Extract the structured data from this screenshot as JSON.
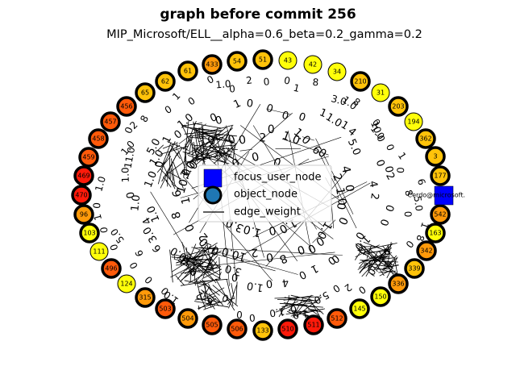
{
  "title": "graph before commit 256",
  "subtitle": "MIP_Microsoft/ELL__alpha=0.6_beta=0.2_gamma=0.2",
  "legend": {
    "focus": "focus_user_node",
    "object": "object_node",
    "edge": "edge_weight"
  },
  "colors": {
    "focus_fill": "#0000ff",
    "object_legend_fill": "#1f77b4",
    "red": "#ff1a0a",
    "orange_red": "#ff5a0a",
    "orange": "#ff9a0a",
    "amber": "#ffc30a",
    "yellow": "#ffff0a"
  },
  "focus_node": {
    "label": "Cerdo@microsoft."
  },
  "nodes": [
    {
      "label": "54",
      "heat": "amber",
      "thick": true
    },
    {
      "label": "51",
      "heat": "amber",
      "thick": true
    },
    {
      "label": "43",
      "heat": "yellow",
      "thick": false
    },
    {
      "label": "42",
      "heat": "yellow",
      "thick": false
    },
    {
      "label": "34",
      "heat": "yellow",
      "thick": false
    },
    {
      "label": "210",
      "heat": "amber",
      "thick": true
    },
    {
      "label": "31",
      "heat": "yellow",
      "thick": false
    },
    {
      "label": "203",
      "heat": "amber",
      "thick": true
    },
    {
      "label": "194",
      "heat": "yellow",
      "thick": false
    },
    {
      "label": "362",
      "heat": "amber",
      "thick": true
    },
    {
      "label": "3",
      "heat": "amber",
      "thick": true
    },
    {
      "label": "177",
      "heat": "amber",
      "thick": true
    },
    {
      "label": "542",
      "heat": "orange",
      "thick": true
    },
    {
      "label": "163",
      "heat": "yellow",
      "thick": true
    },
    {
      "label": "342",
      "heat": "orange",
      "thick": true
    },
    {
      "label": "339",
      "heat": "amber",
      "thick": true
    },
    {
      "label": "336",
      "heat": "orange",
      "thick": true
    },
    {
      "label": "150",
      "heat": "yellow",
      "thick": true
    },
    {
      "label": "145",
      "heat": "yellow",
      "thick": true
    },
    {
      "label": "512",
      "heat": "orange_red",
      "thick": true
    },
    {
      "label": "511",
      "heat": "red",
      "thick": true
    },
    {
      "label": "510",
      "heat": "red",
      "thick": true
    },
    {
      "label": "133",
      "heat": "amber",
      "thick": true
    },
    {
      "label": "506",
      "heat": "orange_red",
      "thick": true
    },
    {
      "label": "505",
      "heat": "orange_red",
      "thick": true
    },
    {
      "label": "504",
      "heat": "orange",
      "thick": true
    },
    {
      "label": "503",
      "heat": "orange_red",
      "thick": true
    },
    {
      "label": "315",
      "heat": "orange",
      "thick": true
    },
    {
      "label": "124",
      "heat": "yellow",
      "thick": false
    },
    {
      "label": "496",
      "heat": "orange_red",
      "thick": true
    },
    {
      "label": "111",
      "heat": "yellow",
      "thick": false
    },
    {
      "label": "103",
      "heat": "yellow",
      "thick": true
    },
    {
      "label": "96",
      "heat": "orange",
      "thick": true
    },
    {
      "label": "470",
      "heat": "red",
      "thick": true
    },
    {
      "label": "469",
      "heat": "red",
      "thick": true
    },
    {
      "label": "459",
      "heat": "orange_red",
      "thick": true
    },
    {
      "label": "458",
      "heat": "orange_red",
      "thick": true
    },
    {
      "label": "457",
      "heat": "orange_red",
      "thick": true
    },
    {
      "label": "456",
      "heat": "orange_red",
      "thick": true
    },
    {
      "label": "65",
      "heat": "amber",
      "thick": true
    },
    {
      "label": "62",
      "heat": "amber",
      "thick": true
    },
    {
      "label": "61",
      "heat": "amber",
      "thick": true
    },
    {
      "label": "433",
      "heat": "orange",
      "thick": true
    }
  ],
  "edge_weight_labels": [
    "1.0",
    "3.0",
    "5.0",
    "10.0",
    "0",
    "1",
    "2",
    "4",
    "6",
    "7",
    "8"
  ]
}
